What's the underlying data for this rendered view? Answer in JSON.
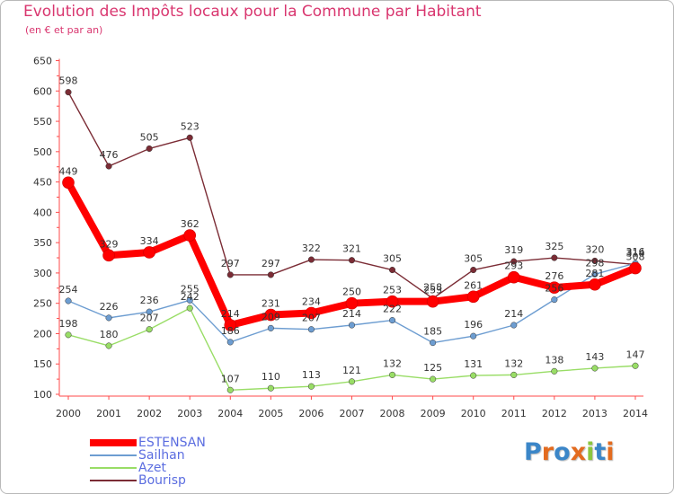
{
  "header": {
    "title": "Evolution des Impôts locaux pour la Commune par Habitant",
    "subtitle": "(en € et par an)"
  },
  "brand": {
    "text": "Proxiti"
  },
  "chart_data": {
    "type": "line",
    "title": "Evolution des Impôts locaux pour la Commune par Habitant",
    "subtitle": "(en € et par an)",
    "xlabel": "",
    "ylabel": "",
    "categories": [
      "2000",
      "2001",
      "2002",
      "2003",
      "2004",
      "2005",
      "2006",
      "2007",
      "2008",
      "2009",
      "2010",
      "2011",
      "2012",
      "2013",
      "2014"
    ],
    "ylim": [
      100,
      650
    ],
    "yticks": [
      100,
      150,
      200,
      250,
      300,
      350,
      400,
      450,
      500,
      550,
      600,
      650
    ],
    "grid": false,
    "legend_position": "bottom-left",
    "series": [
      {
        "name": "ESTENSAN",
        "color": "#ff0000",
        "values": [
          449,
          329,
          334,
          362,
          214,
          231,
          234,
          250,
          253,
          253,
          261,
          293,
          276,
          281,
          308
        ]
      },
      {
        "name": "Sailhan",
        "color": "#6d9dd1",
        "values": [
          254,
          226,
          236,
          255,
          186,
          209,
          207,
          214,
          222,
          185,
          196,
          214,
          256,
          298,
          316
        ]
      },
      {
        "name": "Azet",
        "color": "#99dd66",
        "values": [
          198,
          180,
          207,
          242,
          107,
          110,
          113,
          121,
          132,
          125,
          131,
          132,
          138,
          143,
          147
        ]
      },
      {
        "name": "Bourisp",
        "color": "#7b2c35",
        "values": [
          598,
          476,
          505,
          523,
          297,
          297,
          322,
          321,
          305,
          258,
          305,
          319,
          325,
          320,
          314
        ]
      }
    ]
  }
}
